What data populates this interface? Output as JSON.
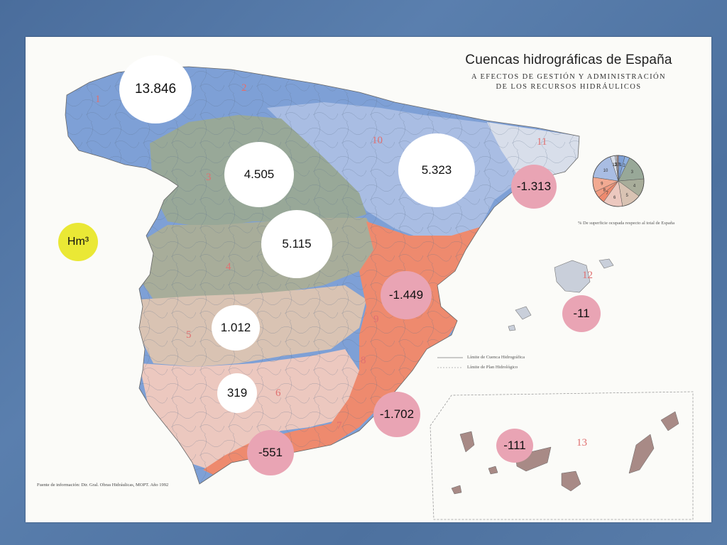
{
  "title": "Cuencas hidrográficas de España",
  "subtitle_line1": "A EFECTOS DE GESTIÓN Y ADMINISTRACIÓN",
  "subtitle_line2": "DE LOS RECURSOS HIDRÁULICOS",
  "unit_label": "Hm³",
  "balances": [
    {
      "basin": "1",
      "value": "13.846"
    },
    {
      "basin": "3",
      "value": "4.505"
    },
    {
      "basin": "10",
      "value": "5.323"
    },
    {
      "basin": "11",
      "value": "-1.313"
    },
    {
      "basin": "4",
      "value": "5.115"
    },
    {
      "basin": "9",
      "value": "-1.449"
    },
    {
      "basin": "5",
      "value": "1.012"
    },
    {
      "basin": "12",
      "value": "-11"
    },
    {
      "basin": "6",
      "value": "319"
    },
    {
      "basin": "8",
      "value": "-1.702"
    },
    {
      "basin": "7",
      "value": "-551"
    },
    {
      "basin": "13",
      "value": "-111"
    }
  ],
  "basin_numbers": {
    "n1": "1",
    "n2": "2",
    "n3": "3",
    "n4": "4",
    "n5": "5",
    "n6": "6",
    "n7": "7",
    "n8": "8",
    "n9": "9",
    "n10": "10",
    "n11": "11",
    "n12": "12",
    "n13": "13"
  },
  "pie_labels": [
    "1",
    "2",
    "3",
    "4",
    "5",
    "6",
    "7",
    "8",
    "9",
    "10",
    "11",
    "12",
    "13"
  ],
  "pie_caption": "% De superficie ocupada respecto al total de España",
  "legend": {
    "basin_limit": "Límite de Cuenca Hidrográfica",
    "plan_limit": "Límite de Plan Hidrológico"
  },
  "source": "Fuente de información: Dir. Gral. Obras Hidráulicas, MOPT. Año 1992",
  "colors": {
    "north": "#7ea0d6",
    "ebro": "#a9bde3",
    "duero": "#98a898",
    "tajo": "#a8ad9a",
    "guadiana": "#d9c3b3",
    "guadalquivir": "#ecc8bf",
    "levante": "#ee8a6e",
    "pink_bubble": "#e9a4b4",
    "yellow_bubble": "#eae835"
  }
}
